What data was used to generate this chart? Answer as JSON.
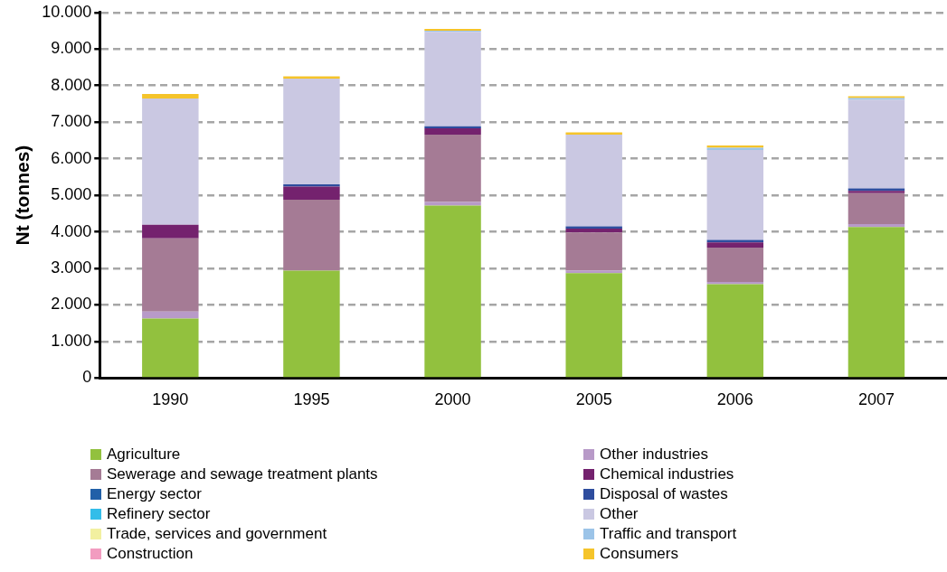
{
  "chart_data": {
    "type": "bar",
    "stacked": true,
    "ylabel": "Nt (tonnes)",
    "categories": [
      "1990",
      "1995",
      "2000",
      "2005",
      "2006",
      "2007"
    ],
    "series": [
      {
        "name": "Agriculture",
        "color": "#92c13e",
        "values": [
          1630,
          2940,
          4720,
          2870,
          2570,
          4130
        ]
      },
      {
        "name": "Other industries",
        "color": "#b89ac8",
        "values": [
          190,
          0,
          100,
          70,
          60,
          80
        ]
      },
      {
        "name": "Sewerage and sewage treatment plants",
        "color": "#a57b95",
        "values": [
          2000,
          1940,
          1840,
          1040,
          940,
          850
        ]
      },
      {
        "name": "Chemical industries",
        "color": "#74226e",
        "values": [
          370,
          360,
          170,
          110,
          140,
          60
        ]
      },
      {
        "name": "Energy sector",
        "color": "#2160a8",
        "values": [
          0,
          0,
          0,
          0,
          0,
          0
        ]
      },
      {
        "name": "Disposal of wastes",
        "color": "#2e4d9e",
        "values": [
          0,
          60,
          60,
          60,
          70,
          70
        ]
      },
      {
        "name": "Refinery sector",
        "color": "#33bde9",
        "values": [
          0,
          0,
          0,
          0,
          0,
          0
        ]
      },
      {
        "name": "Other",
        "color": "#cac8e2",
        "values": [
          3460,
          2890,
          2580,
          2510,
          2460,
          2420
        ]
      },
      {
        "name": "Trade, services and government",
        "color": "#f2f0a0",
        "values": [
          0,
          0,
          0,
          0,
          0,
          0
        ]
      },
      {
        "name": "Traffic and transport",
        "color": "#9cc4e8",
        "values": [
          0,
          0,
          30,
          0,
          60,
          50
        ]
      },
      {
        "name": "Construction",
        "color": "#f29cc0",
        "values": [
          0,
          0,
          0,
          0,
          0,
          0
        ]
      },
      {
        "name": "Consumers",
        "color": "#f5c42a",
        "values": [
          120,
          60,
          50,
          60,
          60,
          50
        ]
      }
    ],
    "ylim": [
      0,
      10000
    ],
    "yticks": [
      0,
      {
        "value": 1000,
        "label": "1.000"
      },
      {
        "value": 2000,
        "label": "2.000"
      },
      {
        "value": 3000,
        "label": "3.000"
      },
      {
        "value": 4000,
        "label": "4.000"
      },
      {
        "value": 5000,
        "label": "5.000"
      },
      {
        "value": 6000,
        "label": "6.000"
      },
      {
        "value": 7000,
        "label": "7.000"
      },
      {
        "value": 8000,
        "label": "8.000"
      },
      {
        "value": 9000,
        "label": "9.000"
      },
      {
        "value": 10000,
        "label": "10.000"
      }
    ],
    "grid": "y",
    "line_style": "dashed",
    "legend": "bottom"
  }
}
